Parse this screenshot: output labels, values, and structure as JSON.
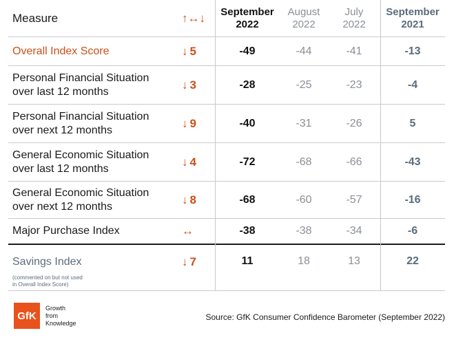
{
  "chart_data": {
    "type": "table",
    "header": {
      "measure": "Measure",
      "change": "↑↔↓",
      "col1_line1": "September",
      "col1_line2": "2022",
      "col2_line1": "August",
      "col2_line2": "2022",
      "col3_line1": "July",
      "col3_line2": "2022",
      "col4_line1": "September",
      "col4_line2": "2021"
    },
    "rows": [
      {
        "measure_line1": "Overall Index Score",
        "measure_line2": "",
        "direction": "↓",
        "change": "5",
        "sep2022": "-49",
        "aug2022": "-44",
        "jul2022": "-41",
        "sep2021": "-13"
      },
      {
        "measure_line1": "Personal Financial Situation",
        "measure_line2": "over last 12 months",
        "direction": "↓",
        "change": "3",
        "sep2022": "-28",
        "aug2022": "-25",
        "jul2022": "-23",
        "sep2021": "-4"
      },
      {
        "measure_line1": "Personal Financial Situation",
        "measure_line2": "over next 12 months",
        "direction": "↓",
        "change": "9",
        "sep2022": "-40",
        "aug2022": "-31",
        "jul2022": "-26",
        "sep2021": "5"
      },
      {
        "measure_line1": "General Economic Situation",
        "measure_line2": "over last 12 months",
        "direction": "↓",
        "change": "4",
        "sep2022": "-72",
        "aug2022": "-68",
        "jul2022": "-66",
        "sep2021": "-43"
      },
      {
        "measure_line1": "General Economic Situation",
        "measure_line2": "over next 12 months",
        "direction": "↓",
        "change": "8",
        "sep2022": "-68",
        "aug2022": "-60",
        "jul2022": "-57",
        "sep2021": "-16"
      },
      {
        "measure_line1": "Major Purchase Index",
        "measure_line2": "",
        "direction": "↔",
        "change": "",
        "sep2022": "-38",
        "aug2022": "-38",
        "jul2022": "-34",
        "sep2021": "-6"
      },
      {
        "measure_line1": "Savings Index",
        "measure_line2": "",
        "note_line1": "(commented on but not used",
        "note_line2": "in Overall Index Score)",
        "direction": "↓",
        "change": "7",
        "sep2022": "11",
        "aug2022": "18",
        "jul2022": "13",
        "sep2021": "22"
      }
    ]
  },
  "footer": {
    "logo_text": "GfK",
    "tagline": [
      "Growth",
      "from",
      "Knowledge"
    ],
    "source": "Source: GfK Consumer Confidence Barometer (September 2022)"
  },
  "colors": {
    "accent": "#c8501a",
    "muted": "#8a8f96",
    "slate": "#5b6b7c",
    "logo": "#e8521c"
  }
}
